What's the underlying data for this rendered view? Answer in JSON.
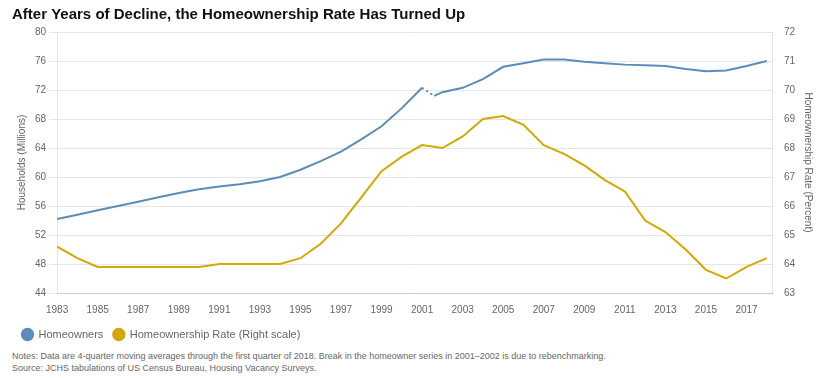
{
  "chart_data": {
    "type": "line",
    "title": "After Years of Decline, the Homeownership Rate Has Turned Up",
    "ylabel": "Households (Millions)",
    "y2label": "Homeownership Rate (Percent)",
    "annotations": [
      "Notes: Data are 4-quarter moving averages through the first quarter of 2018. Break in the homeowner series in 2001–2002 is due to rebenchmarking.",
      "Source: JCHS tabulations of US Census Bureau, Housing Vacancy Surveys."
    ],
    "xlim": [
      1983,
      2018.3
    ],
    "xticks": [
      1983,
      1985,
      1987,
      1989,
      1991,
      1993,
      1995,
      1997,
      1999,
      2001,
      2003,
      2005,
      2007,
      2009,
      2011,
      2013,
      2015,
      2017
    ],
    "ylim": [
      44,
      80
    ],
    "yticks": [
      44,
      48,
      52,
      56,
      60,
      64,
      68,
      72,
      76,
      80
    ],
    "y2lim": [
      63,
      72
    ],
    "y2ticks": [
      63,
      64,
      65,
      66,
      67,
      68,
      69,
      70,
      71,
      72
    ],
    "grid": true,
    "legend": "lower left",
    "series": [
      {
        "name": "Homeowners",
        "color": "#5b8db8",
        "axis": "y",
        "line_style": "solid",
        "x": [
          1983,
          1984,
          1985,
          1986,
          1987,
          1988,
          1989,
          1990,
          1991,
          1992,
          1993,
          1994,
          1995,
          1996,
          1997,
          1998,
          1999,
          2000,
          2001.0
        ],
        "values": [
          54.2,
          54.8,
          55.4,
          56.0,
          56.6,
          57.2,
          57.8,
          58.3,
          58.7,
          59.0,
          59.4,
          60.0,
          61.0,
          62.2,
          63.5,
          65.2,
          67.0,
          69.5,
          72.3
        ]
      },
      {
        "color": "#5b8db8",
        "axis": "y",
        "line_style": "dotted",
        "x": [
          2001.0,
          2001.6
        ],
        "values": [
          72.3,
          71.2
        ]
      },
      {
        "color": "#5b8db8",
        "axis": "y",
        "line_style": "solid",
        "x": [
          2001.6,
          2002,
          2003,
          2004,
          2005,
          2006,
          2007,
          2008,
          2009,
          2010,
          2011,
          2012,
          2013,
          2014,
          2015,
          2016,
          2017,
          2018
        ],
        "values": [
          71.2,
          71.7,
          72.3,
          73.5,
          75.2,
          75.7,
          76.2,
          76.2,
          75.9,
          75.7,
          75.5,
          75.4,
          75.3,
          74.9,
          74.6,
          74.7,
          75.3,
          76.0
        ]
      },
      {
        "name": "Homeownership Rate (Right scale)",
        "color": "#d4a800",
        "axis": "y2",
        "line_style": "solid",
        "x": [
          1983,
          1984,
          1985,
          1986,
          1987,
          1988,
          1989,
          1990,
          1991,
          1992,
          1993,
          1994,
          1995,
          1996,
          1997,
          1998,
          1999,
          2000,
          2001,
          2002,
          2003,
          2004,
          2005,
          2006,
          2007,
          2008,
          2009,
          2010,
          2011,
          2012,
          2013,
          2014,
          2015,
          2016,
          2017,
          2018
        ],
        "values": [
          64.6,
          64.2,
          63.9,
          63.9,
          63.9,
          63.9,
          63.9,
          63.9,
          64.0,
          64.0,
          64.0,
          64.0,
          64.2,
          64.7,
          65.4,
          66.3,
          67.2,
          67.7,
          68.1,
          68.0,
          68.4,
          69.0,
          69.1,
          68.8,
          68.1,
          67.8,
          67.4,
          66.9,
          66.5,
          65.5,
          65.1,
          64.5,
          63.8,
          63.5,
          63.9,
          64.2
        ]
      }
    ]
  }
}
